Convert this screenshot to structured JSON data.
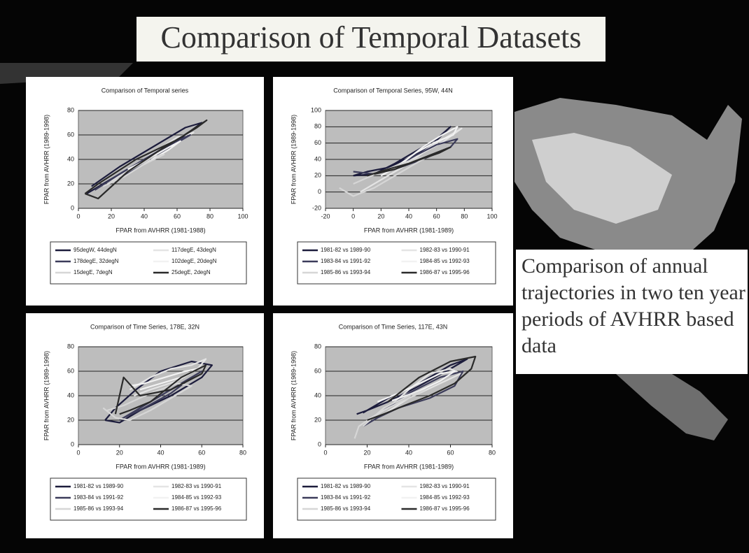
{
  "slide": {
    "title": "Comparison of Temporal Datasets",
    "caption": "Comparison of annual trajectories in two ten year periods of AVHRR based data"
  },
  "chart_data": [
    {
      "type": "line",
      "title": "Comparison of Temporal series",
      "x_label": "FPAR from AVHRR (1981-1988)",
      "y_label": "FPAR from AVHRR (1989-1998)",
      "xlim": [
        0,
        100
      ],
      "xticks": [
        0,
        20,
        40,
        60,
        80,
        100
      ],
      "ylim": [
        0,
        80
      ],
      "yticks": [
        0,
        20,
        40,
        60,
        80
      ],
      "grid": true,
      "series": [
        {
          "name": "95degW, 44degN",
          "color": "#1c1c3c",
          "x": [
            5,
            15,
            30,
            45,
            60,
            75,
            65,
            45,
            25,
            8
          ],
          "values": [
            12,
            20,
            32,
            42,
            55,
            70,
            66,
            50,
            34,
            18
          ]
        },
        {
          "name": "117degE, 43degN",
          "color": "#e4e4e4",
          "x": [
            20,
            35,
            50,
            62,
            70,
            60,
            45,
            30
          ],
          "values": [
            22,
            35,
            46,
            55,
            62,
            58,
            45,
            30
          ]
        },
        {
          "name": "178degE, 32degN",
          "color": "#3c3c5a",
          "x": [
            10,
            25,
            40,
            55,
            68,
            58,
            40,
            22
          ],
          "values": [
            15,
            28,
            40,
            52,
            60,
            52,
            38,
            22
          ]
        },
        {
          "name": "102degE, 20degN",
          "color": "#f2f2f2",
          "x": [
            30,
            42,
            55,
            62,
            55,
            40
          ],
          "values": [
            32,
            40,
            50,
            55,
            48,
            36
          ]
        },
        {
          "name": "15degE, 7degN",
          "color": "#d6d6d6",
          "x": [
            15,
            28,
            40,
            52,
            45,
            30,
            18
          ],
          "values": [
            18,
            26,
            36,
            44,
            42,
            30,
            20
          ]
        },
        {
          "name": "25degE, 2degN",
          "color": "#2a2a2a",
          "x": [
            4,
            12,
            30,
            50,
            72,
            78,
            60,
            35,
            12,
            4
          ],
          "values": [
            12,
            8,
            30,
            48,
            66,
            72,
            56,
            40,
            20,
            12
          ]
        }
      ]
    },
    {
      "type": "line",
      "title": "Comparison of Temporal Series, 95W, 44N",
      "x_label": "FPAR from AVHRR (1981-1989)",
      "y_label": "FPAR from AVHRR (1989-1998)",
      "xlim": [
        -20,
        100
      ],
      "xticks": [
        -20,
        0,
        20,
        40,
        60,
        80,
        100
      ],
      "ylim": [
        -20,
        100
      ],
      "yticks": [
        -20,
        0,
        20,
        40,
        60,
        80,
        100
      ],
      "grid": true,
      "series": [
        {
          "name": "1981-82 vs 1989-90",
          "color": "#1c1c3c",
          "x": [
            0,
            10,
            25,
            40,
            55,
            70,
            60,
            45,
            30,
            15,
            0
          ],
          "values": [
            20,
            25,
            30,
            42,
            55,
            80,
            65,
            50,
            35,
            22,
            20
          ]
        },
        {
          "name": "1982-83 vs 1990-91",
          "color": "#e4e4e4",
          "x": [
            5,
            20,
            35,
            50,
            65,
            78,
            70,
            55,
            40,
            20
          ],
          "values": [
            0,
            15,
            30,
            48,
            62,
            78,
            70,
            55,
            38,
            20
          ]
        },
        {
          "name": "1983-84 vs 1991-92",
          "color": "#3c3c5a",
          "x": [
            0,
            15,
            30,
            45,
            60,
            75,
            70,
            50,
            30,
            10
          ],
          "values": [
            25,
            22,
            30,
            45,
            58,
            65,
            55,
            40,
            28,
            20
          ]
        },
        {
          "name": "1984-85 vs 1992-93",
          "color": "#f2f2f2",
          "x": [
            20,
            35,
            50,
            62,
            75,
            72,
            60,
            45,
            30
          ],
          "values": [
            20,
            35,
            55,
            68,
            80,
            70,
            62,
            48,
            30
          ]
        },
        {
          "name": "1985-86 vs 1993-94",
          "color": "#d6d6d6",
          "x": [
            -10,
            0,
            15,
            30,
            45,
            55,
            40,
            20,
            0
          ],
          "values": [
            5,
            -5,
            5,
            20,
            35,
            45,
            38,
            25,
            10
          ]
        },
        {
          "name": "1986-87 vs 1995-96",
          "color": "#2a2a2a",
          "x": [
            10,
            25,
            40,
            55,
            70,
            62,
            45,
            30,
            15
          ],
          "values": [
            20,
            28,
            35,
            45,
            55,
            48,
            38,
            28,
            22
          ]
        }
      ]
    },
    {
      "type": "line",
      "title": "Comparison of Time Series, 178E, 32N",
      "x_label": "FPAR from AVHRR (1981-1989)",
      "y_label": "FPAR from AVHRR (1989-1998)",
      "xlim": [
        0,
        80
      ],
      "xticks": [
        0,
        20,
        40,
        60,
        80
      ],
      "ylim": [
        0,
        80
      ],
      "yticks": [
        0,
        20,
        40,
        60,
        80
      ],
      "grid": true,
      "series": [
        {
          "name": "1981-82 vs 1989-90",
          "color": "#1c1c3c",
          "x": [
            13,
            20,
            30,
            45,
            60,
            65,
            55,
            40,
            28,
            18,
            13
          ],
          "values": [
            20,
            18,
            28,
            40,
            55,
            65,
            68,
            60,
            45,
            30,
            20
          ]
        },
        {
          "name": "1982-83 vs 1990-91",
          "color": "#e4e4e4",
          "x": [
            25,
            35,
            45,
            55,
            62,
            58,
            48,
            35,
            27
          ],
          "values": [
            45,
            55,
            62,
            65,
            70,
            62,
            52,
            45,
            40
          ]
        },
        {
          "name": "1983-84 vs 1991-92",
          "color": "#3c3c5a",
          "x": [
            20,
            30,
            40,
            50,
            60,
            55,
            45,
            32,
            22
          ],
          "values": [
            20,
            30,
            40,
            50,
            60,
            55,
            42,
            30,
            22
          ]
        },
        {
          "name": "1984-85 vs 1992-93",
          "color": "#f2f2f2",
          "x": [
            25,
            32,
            42,
            52,
            58,
            50,
            40,
            30
          ],
          "values": [
            48,
            50,
            55,
            60,
            62,
            55,
            50,
            45
          ]
        },
        {
          "name": "1985-86 vs 1993-94",
          "color": "#d6d6d6",
          "x": [
            12,
            18,
            25,
            35,
            45,
            55,
            48,
            35,
            22,
            14
          ],
          "values": [
            30,
            22,
            20,
            28,
            38,
            48,
            50,
            42,
            32,
            28
          ]
        },
        {
          "name": "1986-87 vs 1995-96",
          "color": "#2a2a2a",
          "x": [
            18,
            22,
            30,
            45,
            60,
            62,
            50,
            35,
            25,
            20
          ],
          "values": [
            25,
            55,
            40,
            45,
            58,
            65,
            55,
            35,
            28,
            25
          ]
        }
      ]
    },
    {
      "type": "line",
      "title": "Comparison of Time Series, 117E, 43N",
      "x_label": "FPAR from AVHRR (1981-1989)",
      "y_label": "FPAR from AVHRR (1989-1998)",
      "xlim": [
        0,
        80
      ],
      "xticks": [
        0,
        20,
        40,
        60,
        80
      ],
      "ylim": [
        0,
        80
      ],
      "yticks": [
        0,
        20,
        40,
        60,
        80
      ],
      "grid": true,
      "series": [
        {
          "name": "1981-82 vs 1989-90",
          "color": "#1c1c3c",
          "x": [
            15,
            20,
            30,
            45,
            60,
            68,
            60,
            45,
            30,
            18
          ],
          "values": [
            25,
            28,
            35,
            48,
            62,
            70,
            65,
            50,
            38,
            26
          ]
        },
        {
          "name": "1982-83 vs 1990-91",
          "color": "#e4e4e4",
          "x": [
            20,
            30,
            40,
            50,
            60,
            65,
            55,
            40,
            28
          ],
          "values": [
            20,
            30,
            45,
            58,
            62,
            58,
            50,
            38,
            25
          ]
        },
        {
          "name": "1983-84 vs 1991-92",
          "color": "#3c3c5a",
          "x": [
            18,
            25,
            35,
            50,
            62,
            66,
            55,
            40,
            28
          ],
          "values": [
            15,
            22,
            30,
            38,
            48,
            60,
            55,
            42,
            28
          ]
        },
        {
          "name": "1984-85 vs 1992-93",
          "color": "#f2f2f2",
          "x": [
            25,
            35,
            45,
            55,
            62,
            55,
            45,
            32
          ],
          "values": [
            35,
            42,
            50,
            58,
            60,
            52,
            44,
            36
          ]
        },
        {
          "name": "1985-86 vs 1993-94",
          "color": "#d6d6d6",
          "x": [
            14,
            16,
            22,
            30,
            40,
            48,
            40,
            28,
            18
          ],
          "values": [
            5,
            15,
            22,
            30,
            38,
            45,
            40,
            30,
            15
          ]
        },
        {
          "name": "1986-87 vs 1995-96",
          "color": "#2a2a2a",
          "x": [
            20,
            28,
            38,
            50,
            62,
            70,
            72,
            60,
            45,
            30
          ],
          "values": [
            20,
            25,
            32,
            40,
            50,
            62,
            72,
            68,
            55,
            35
          ]
        }
      ]
    }
  ]
}
